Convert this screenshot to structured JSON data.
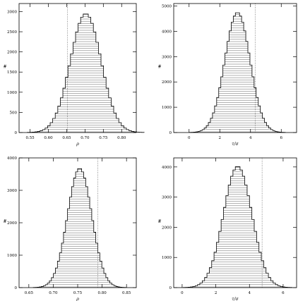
{
  "figure": {
    "layout": "2x2 grid of histograms"
  },
  "chart_data": [
    {
      "type": "bar",
      "subtype": "histogram",
      "panel": "top-left",
      "xlabel": "ρ",
      "ylabel": "#",
      "xlim": [
        0.52,
        0.84
      ],
      "ylim": [
        0,
        3200
      ],
      "xticks": [
        0.55,
        0.6,
        0.65,
        0.7,
        0.75,
        0.8
      ],
      "xtick_labels": [
        "0.55",
        "0.60",
        "0.65",
        "0.70",
        "0.75",
        "0.80"
      ],
      "yticks": [
        0,
        500,
        1000,
        1500,
        2000,
        2500,
        3000
      ],
      "ytick_labels": [
        "0",
        "500",
        "1000",
        "1500",
        "2000",
        "2500",
        "3000"
      ],
      "reference_line": 0.652,
      "histogram": {
        "center": 0.702,
        "sigma": 0.042,
        "peak": 2950
      }
    },
    {
      "type": "bar",
      "subtype": "histogram",
      "panel": "top-right",
      "xlabel": "τ/σ",
      "ylabel": "#",
      "xlim": [
        -1,
        7
      ],
      "ylim": [
        0,
        5100
      ],
      "xticks": [
        0,
        2,
        4,
        6
      ],
      "xtick_labels": [
        "0",
        "2",
        "4",
        "6"
      ],
      "yticks": [
        0,
        1000,
        2000,
        3000,
        4000,
        5000
      ],
      "ytick_labels": [
        "0",
        "1000",
        "2000",
        "3000",
        "4000",
        "5000"
      ],
      "reference_line": 4.3,
      "histogram": {
        "center": 3.15,
        "sigma": 0.82,
        "peak": 4750
      }
    },
    {
      "type": "bar",
      "subtype": "histogram",
      "panel": "bottom-left",
      "xlabel": "ρ",
      "ylabel": "#",
      "xlim": [
        0.63,
        0.87
      ],
      "ylim": [
        0,
        4000
      ],
      "xticks": [
        0.65,
        0.7,
        0.75,
        0.8,
        0.85
      ],
      "xtick_labels": [
        "0.65",
        "0.70",
        "0.75",
        "0.80",
        "0.85"
      ],
      "yticks": [
        0,
        1000,
        2000,
        3000,
        4000
      ],
      "ytick_labels": [
        "0",
        "1000",
        "2000",
        "3000",
        "4000"
      ],
      "reference_line": 0.791,
      "histogram": {
        "center": 0.754,
        "sigma": 0.025,
        "peak": 3680
      }
    },
    {
      "type": "bar",
      "subtype": "histogram",
      "panel": "bottom-right",
      "xlabel": "τ/σ",
      "ylabel": "#",
      "xlim": [
        -0.5,
        6.8
      ],
      "ylim": [
        0,
        4300
      ],
      "xticks": [
        0,
        2,
        4,
        6
      ],
      "xtick_labels": [
        "0",
        "2",
        "4",
        "6"
      ],
      "yticks": [
        0,
        1000,
        2000,
        3000,
        4000
      ],
      "ytick_labels": [
        "0",
        "1000",
        "2000",
        "3000",
        "4000"
      ],
      "reference_line": 4.75,
      "histogram": {
        "center": 3.3,
        "sigma": 0.85,
        "peak": 4020
      }
    }
  ]
}
